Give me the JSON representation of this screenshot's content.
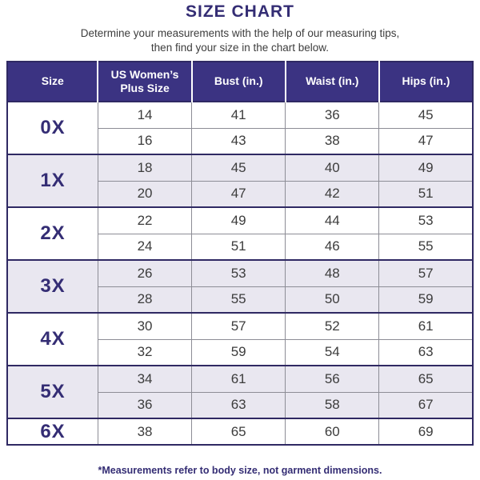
{
  "header": {
    "title": "SIZE CHART",
    "subtitle": [
      "Determine your measurements with the help of our measuring tips,",
      "then find your size in the chart below."
    ]
  },
  "footnote": "*Measurements refer to body size, not garment dimensions.",
  "colors": {
    "accent_indigo": "#342d74",
    "table_header_bg": "#3b3382",
    "table_border_navy": "#2f2963",
    "alt_row_bg": "#e9e7f0",
    "grid_gray": "#8d8d96",
    "cell_text": "#3c3c3c"
  },
  "chart_data": {
    "type": "table",
    "title": "SIZE CHART",
    "columns": [
      "Size",
      "US Women’s Plus Size",
      "Bust (in.)",
      "Waist (in.)",
      "Hips (in.)"
    ],
    "row_groups": [
      {
        "size": "0X",
        "rows": [
          [
            14,
            41,
            36,
            45
          ],
          [
            16,
            43,
            38,
            47
          ]
        ]
      },
      {
        "size": "1X",
        "rows": [
          [
            18,
            45,
            40,
            49
          ],
          [
            20,
            47,
            42,
            51
          ]
        ]
      },
      {
        "size": "2X",
        "rows": [
          [
            22,
            49,
            44,
            53
          ],
          [
            24,
            51,
            46,
            55
          ]
        ]
      },
      {
        "size": "3X",
        "rows": [
          [
            26,
            53,
            48,
            57
          ],
          [
            28,
            55,
            50,
            59
          ]
        ]
      },
      {
        "size": "4X",
        "rows": [
          [
            30,
            57,
            52,
            61
          ],
          [
            32,
            59,
            54,
            63
          ]
        ]
      },
      {
        "size": "5X",
        "rows": [
          [
            34,
            61,
            56,
            65
          ],
          [
            36,
            63,
            58,
            67
          ]
        ]
      },
      {
        "size": "6X",
        "rows": [
          [
            38,
            65,
            60,
            69
          ]
        ]
      }
    ]
  }
}
